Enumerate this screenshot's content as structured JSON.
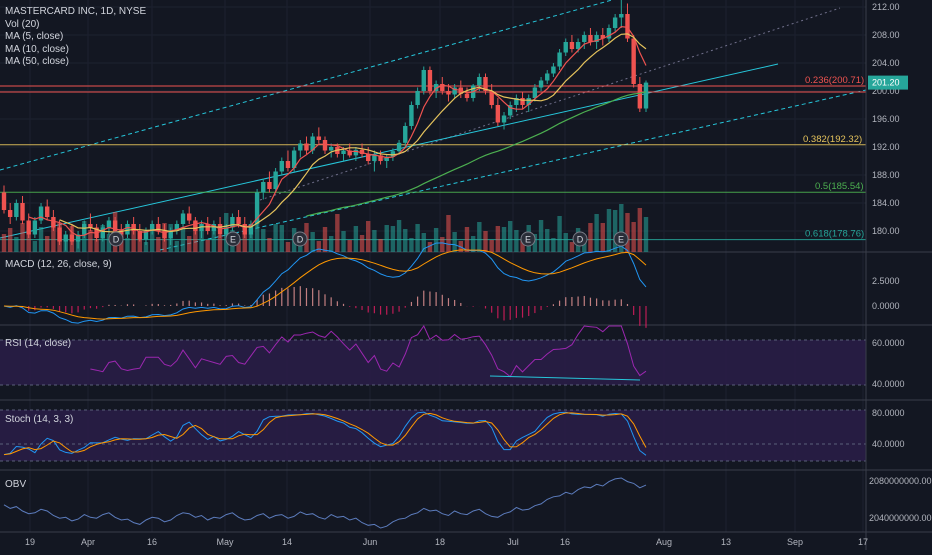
{
  "legend": {
    "symbol": "MASTERCARD INC, 1D, NYSE",
    "vol": "Vol (20)",
    "ma5": "MA (5, close)",
    "ma10": "MA (10, close)",
    "ma50": "MA (50, close)"
  },
  "panes": {
    "macd": "MACD (12, 26, close, 9)",
    "rsi": "RSI (14, close)",
    "stoch": "Stoch (14, 3, 3)",
    "obv": "OBV"
  },
  "price_badge": "201.20",
  "fib_labels": [
    "0.236(200.71)",
    "0.382(192.32)",
    "0.5(185.54)",
    "0.618(178.76)"
  ],
  "event_markers": [
    "D",
    "E",
    "D",
    "E",
    "D",
    "E"
  ],
  "colors": {
    "background": "#131722",
    "up": "#26a69a",
    "down": "#ef5350",
    "ma5": "#ef5350",
    "ma10": "#e5c35c",
    "ma50": "#4caf50",
    "channel": "#26c6da",
    "macd": "#2196f3",
    "signal": "#ff9800",
    "pane_fill": "#2a1d48"
  },
  "chart_data": {
    "type": "candlestick",
    "title": "MASTERCARD INC, 1D, NYSE",
    "x_ticks": [
      "19",
      "Apr",
      "16",
      "May",
      "14",
      "Jun",
      "18",
      "Jul",
      "16",
      "Aug",
      "13",
      "Sep",
      "17"
    ],
    "price_axis": {
      "ticks": [
        212,
        208,
        204,
        200,
        196,
        192,
        188,
        184,
        180
      ],
      "range": [
        177,
        213
      ],
      "last_price": 201.2
    },
    "fibonacci": [
      {
        "level": 0.236,
        "price": 200.71
      },
      {
        "level": 0.382,
        "price": 192.32
      },
      {
        "level": 0.5,
        "price": 185.54
      },
      {
        "level": 0.618,
        "price": 178.76
      }
    ],
    "candles_ohlc": [
      [
        185.5,
        186.5,
        182.5,
        183.0
      ],
      [
        183.0,
        184.0,
        181.0,
        182.0
      ],
      [
        182.0,
        184.5,
        181.5,
        184.0
      ],
      [
        184.0,
        185.0,
        181.0,
        181.5
      ],
      [
        181.5,
        182.5,
        179.0,
        179.5
      ],
      [
        179.5,
        182.0,
        179.0,
        181.5
      ],
      [
        181.5,
        184.0,
        181.0,
        183.5
      ],
      [
        183.5,
        184.5,
        181.5,
        182.0
      ],
      [
        182.0,
        183.0,
        180.0,
        180.5
      ],
      [
        180.5,
        181.5,
        178.0,
        178.5
      ],
      [
        178.5,
        180.0,
        177.2,
        179.5
      ],
      [
        179.5,
        181.0,
        178.0,
        178.5
      ],
      [
        178.5,
        180.0,
        177.5,
        179.5
      ],
      [
        179.5,
        181.5,
        179.0,
        181.0
      ],
      [
        181.0,
        182.5,
        180.0,
        180.5
      ],
      [
        180.5,
        181.0,
        178.5,
        179.0
      ],
      [
        179.0,
        181.0,
        178.5,
        180.5
      ],
      [
        180.5,
        182.0,
        179.5,
        181.5
      ],
      [
        181.5,
        182.0,
        179.5,
        180.0
      ],
      [
        180.0,
        181.0,
        178.5,
        179.5
      ],
      [
        179.5,
        181.5,
        179.0,
        181.0
      ],
      [
        181.0,
        182.0,
        179.5,
        180.0
      ],
      [
        180.0,
        181.0,
        178.5,
        178.8
      ],
      [
        178.8,
        180.5,
        178.0,
        180.0
      ],
      [
        180.0,
        181.5,
        179.5,
        181.0
      ],
      [
        181.0,
        182.0,
        179.5,
        180.0
      ],
      [
        180.0,
        181.0,
        178.5,
        179.0
      ],
      [
        179.0,
        180.5,
        178.0,
        180.0
      ],
      [
        180.0,
        181.5,
        179.5,
        181.0
      ],
      [
        181.0,
        183.0,
        180.5,
        182.5
      ],
      [
        182.5,
        183.5,
        181.0,
        181.5
      ],
      [
        181.5,
        182.0,
        179.5,
        180.0
      ],
      [
        180.0,
        181.5,
        179.0,
        181.0
      ],
      [
        181.0,
        182.0,
        179.5,
        180.0
      ],
      [
        180.0,
        181.5,
        179.5,
        181.0
      ],
      [
        181.0,
        182.0,
        179.0,
        179.5
      ],
      [
        179.5,
        181.0,
        179.0,
        180.5
      ],
      [
        180.5,
        182.5,
        180.0,
        182.0
      ],
      [
        182.0,
        183.0,
        180.5,
        181.0
      ],
      [
        181.0,
        182.0,
        179.0,
        179.5
      ],
      [
        179.5,
        181.5,
        179.0,
        181.0
      ],
      [
        181.0,
        186.0,
        180.5,
        185.5
      ],
      [
        185.5,
        187.5,
        184.5,
        187.0
      ],
      [
        187.0,
        188.5,
        185.5,
        186.0
      ],
      [
        186.0,
        189.0,
        185.5,
        188.5
      ],
      [
        188.5,
        190.5,
        188.0,
        190.0
      ],
      [
        190.0,
        191.5,
        188.5,
        189.0
      ],
      [
        189.0,
        192.0,
        188.5,
        191.5
      ],
      [
        191.5,
        193.0,
        190.5,
        192.5
      ],
      [
        192.5,
        193.5,
        191.0,
        191.5
      ],
      [
        191.5,
        194.0,
        191.0,
        193.5
      ],
      [
        193.5,
        194.8,
        192.5,
        193.0
      ],
      [
        193.0,
        193.5,
        191.0,
        191.5
      ],
      [
        191.5,
        192.5,
        190.5,
        192.0
      ],
      [
        192.0,
        192.5,
        190.5,
        191.0
      ],
      [
        191.0,
        192.0,
        190.0,
        191.5
      ],
      [
        191.5,
        192.5,
        190.5,
        190.8
      ],
      [
        190.8,
        192.0,
        190.0,
        191.6
      ],
      [
        191.6,
        192.5,
        190.5,
        191.0
      ],
      [
        191.0,
        192.0,
        189.5,
        190.0
      ],
      [
        190.0,
        191.5,
        188.5,
        190.8
      ],
      [
        190.8,
        191.5,
        189.5,
        190.0
      ],
      [
        190.0,
        191.0,
        189.0,
        190.6
      ],
      [
        190.6,
        191.8,
        190.0,
        191.4
      ],
      [
        191.4,
        193.0,
        191.0,
        192.6
      ],
      [
        192.6,
        195.5,
        192.0,
        195.0
      ],
      [
        195.0,
        198.5,
        194.5,
        198.0
      ],
      [
        198.0,
        200.5,
        197.5,
        200.0
      ],
      [
        200.0,
        203.5,
        199.5,
        203.0
      ],
      [
        203.0,
        203.5,
        199.5,
        200.0
      ],
      [
        200.0,
        201.5,
        199.0,
        201.0
      ],
      [
        201.0,
        202.0,
        199.5,
        200.0
      ],
      [
        200.0,
        201.0,
        198.5,
        199.5
      ],
      [
        199.5,
        201.0,
        199.0,
        200.5
      ],
      [
        200.5,
        201.5,
        199.0,
        199.6
      ],
      [
        199.6,
        200.5,
        198.5,
        199.0
      ],
      [
        199.0,
        201.0,
        198.5,
        200.8
      ],
      [
        200.8,
        202.5,
        200.0,
        202.0
      ],
      [
        202.0,
        202.5,
        199.5,
        200.0
      ],
      [
        200.0,
        201.0,
        197.5,
        198.0
      ],
      [
        198.0,
        199.0,
        195.0,
        195.5
      ],
      [
        195.5,
        197.0,
        194.5,
        196.5
      ],
      [
        196.5,
        198.5,
        196.0,
        198.0
      ],
      [
        198.0,
        199.5,
        197.0,
        199.0
      ],
      [
        199.0,
        199.8,
        197.5,
        198.0
      ],
      [
        198.0,
        199.5,
        197.0,
        199.0
      ],
      [
        199.0,
        201.0,
        198.5,
        200.5
      ],
      [
        200.5,
        202.0,
        200.0,
        201.5
      ],
      [
        201.5,
        203.0,
        201.0,
        202.5
      ],
      [
        202.5,
        204.0,
        202.0,
        203.5
      ],
      [
        203.5,
        206.0,
        203.0,
        205.5
      ],
      [
        205.5,
        207.5,
        205.0,
        207.0
      ],
      [
        207.0,
        208.0,
        205.5,
        206.0
      ],
      [
        206.0,
        207.5,
        205.5,
        207.0
      ],
      [
        207.0,
        208.5,
        206.0,
        208.0
      ],
      [
        208.0,
        209.0,
        206.5,
        207.0
      ],
      [
        207.0,
        208.5,
        206.0,
        208.0
      ],
      [
        208.0,
        209.0,
        206.5,
        207.5
      ],
      [
        207.5,
        209.5,
        207.0,
        209.0
      ],
      [
        209.0,
        211.0,
        208.5,
        210.5
      ],
      [
        210.5,
        213.0,
        209.0,
        211.0
      ],
      [
        211.0,
        212.5,
        207.0,
        207.5
      ],
      [
        207.5,
        208.0,
        200.5,
        201.0
      ],
      [
        201.0,
        202.0,
        197.0,
        197.5
      ],
      [
        197.5,
        201.5,
        197.0,
        201.2
      ]
    ],
    "macd_axis": {
      "ticks": [
        2.5,
        0.0
      ]
    },
    "rsi_axis": {
      "ticks": [
        60.0,
        40.0
      ]
    },
    "stoch_axis": {
      "ticks": [
        80.0,
        40.0
      ]
    },
    "obv_axis": {
      "ticks": [
        2080000000.0,
        2040000000.0
      ]
    },
    "axis_labels": {
      "macd": [
        "2.5000",
        "0.0000"
      ],
      "rsi": [
        "60.0000",
        "40.0000"
      ],
      "stoch": [
        "80.0000",
        "40.0000"
      ],
      "obv": [
        "2080000000.0000",
        "2040000000.0000"
      ]
    }
  }
}
